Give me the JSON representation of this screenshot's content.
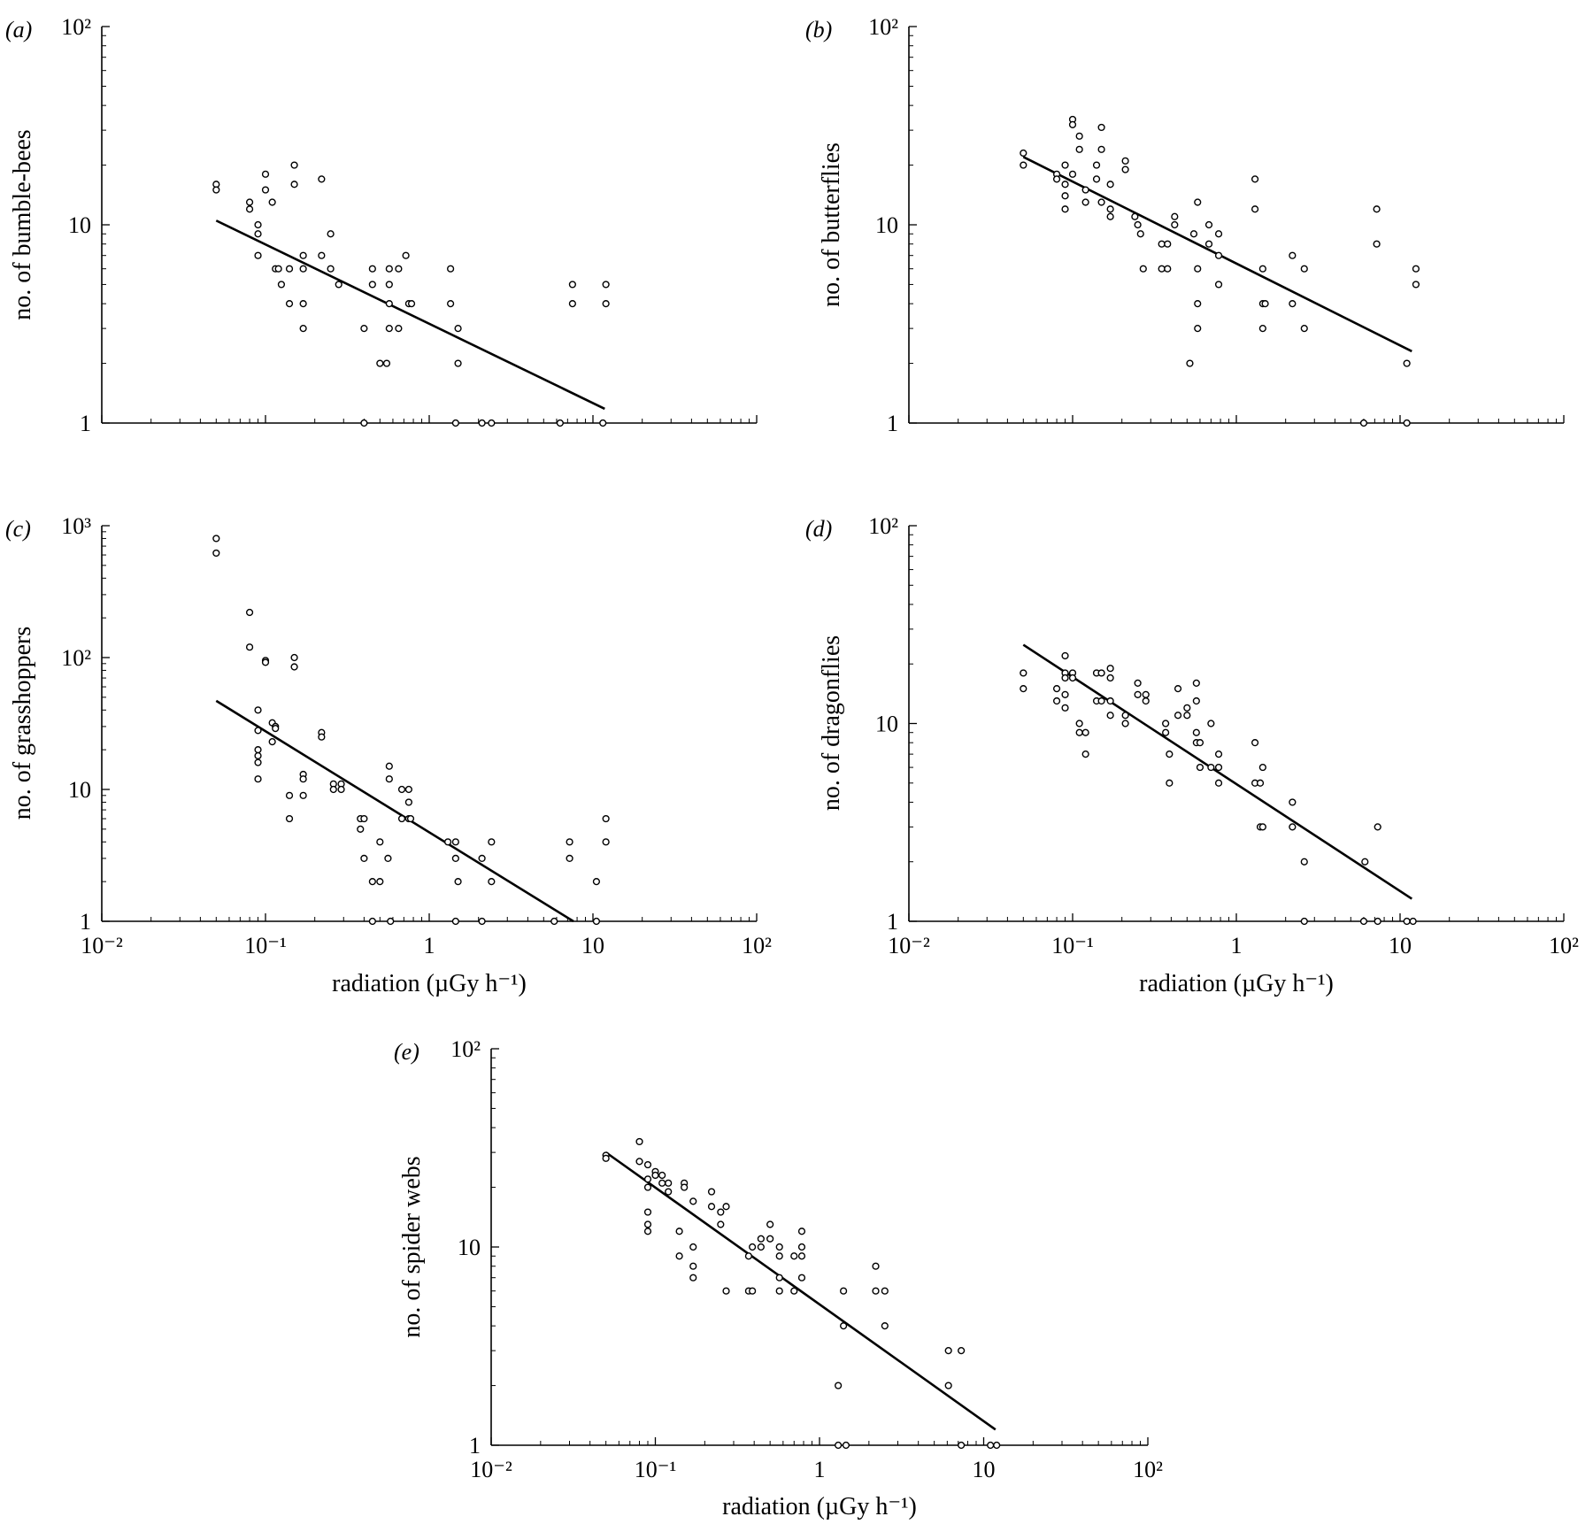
{
  "chart_data": [
    {
      "type": "scatter",
      "panel_label": "(a)",
      "ylabel": "no. of bumble-bees",
      "xlabel": "",
      "xscale": "log",
      "yscale": "log",
      "xlim": [
        0.01,
        100
      ],
      "ylim": [
        1,
        100
      ],
      "x_ticks": [],
      "y_ticks": [
        "1",
        "10",
        "10²"
      ],
      "points": [
        [
          0.05,
          16
        ],
        [
          0.05,
          15
        ],
        [
          0.08,
          13
        ],
        [
          0.08,
          12
        ],
        [
          0.09,
          10
        ],
        [
          0.09,
          9
        ],
        [
          0.09,
          7
        ],
        [
          0.1,
          18
        ],
        [
          0.1,
          15
        ],
        [
          0.11,
          13
        ],
        [
          0.115,
          6
        ],
        [
          0.12,
          6
        ],
        [
          0.125,
          5
        ],
        [
          0.14,
          6
        ],
        [
          0.14,
          4
        ],
        [
          0.15,
          20
        ],
        [
          0.15,
          16
        ],
        [
          0.17,
          7
        ],
        [
          0.17,
          6
        ],
        [
          0.17,
          4
        ],
        [
          0.17,
          3
        ],
        [
          0.22,
          17
        ],
        [
          0.22,
          7
        ],
        [
          0.25,
          9
        ],
        [
          0.25,
          6
        ],
        [
          0.28,
          5
        ],
        [
          0.4,
          3
        ],
        [
          0.45,
          6
        ],
        [
          0.45,
          5
        ],
        [
          0.5,
          2
        ],
        [
          0.55,
          2
        ],
        [
          0.57,
          6
        ],
        [
          0.57,
          5
        ],
        [
          0.57,
          4
        ],
        [
          0.57,
          3
        ],
        [
          0.65,
          6
        ],
        [
          0.65,
          3
        ],
        [
          0.72,
          7
        ],
        [
          0.75,
          4
        ],
        [
          0.78,
          4
        ],
        [
          1.35,
          6
        ],
        [
          1.35,
          4
        ],
        [
          1.5,
          3
        ],
        [
          1.5,
          2
        ],
        [
          7.5,
          5
        ],
        [
          7.5,
          4
        ],
        [
          12,
          5
        ],
        [
          12,
          4
        ],
        [
          0.4,
          1
        ],
        [
          1.45,
          1
        ],
        [
          2.1,
          1
        ],
        [
          2.4,
          1
        ],
        [
          6.3,
          1
        ],
        [
          11.5,
          1
        ]
      ],
      "fit": {
        "x": [
          0.05,
          11.8
        ],
        "y": [
          10.5,
          1.18
        ]
      }
    },
    {
      "type": "scatter",
      "panel_label": "(b)",
      "ylabel": "no. of butterflies",
      "xlabel": "",
      "xscale": "log",
      "yscale": "log",
      "xlim": [
        0.01,
        100
      ],
      "ylim": [
        1,
        100
      ],
      "x_ticks": [],
      "y_ticks": [
        "1",
        "10",
        "10²"
      ],
      "points": [
        [
          0.05,
          23
        ],
        [
          0.05,
          20
        ],
        [
          0.08,
          18
        ],
        [
          0.08,
          17
        ],
        [
          0.09,
          20
        ],
        [
          0.09,
          16
        ],
        [
          0.09,
          14
        ],
        [
          0.09,
          12
        ],
        [
          0.1,
          34
        ],
        [
          0.1,
          32
        ],
        [
          0.1,
          18
        ],
        [
          0.11,
          28
        ],
        [
          0.11,
          24
        ],
        [
          0.12,
          15
        ],
        [
          0.12,
          13
        ],
        [
          0.14,
          20
        ],
        [
          0.14,
          17
        ],
        [
          0.15,
          31
        ],
        [
          0.15,
          24
        ],
        [
          0.15,
          13
        ],
        [
          0.17,
          16
        ],
        [
          0.17,
          12
        ],
        [
          0.17,
          11
        ],
        [
          0.21,
          21
        ],
        [
          0.21,
          19
        ],
        [
          0.24,
          11
        ],
        [
          0.25,
          10
        ],
        [
          0.26,
          9
        ],
        [
          0.27,
          6
        ],
        [
          0.35,
          8
        ],
        [
          0.35,
          6
        ],
        [
          0.38,
          8
        ],
        [
          0.38,
          6
        ],
        [
          0.42,
          11
        ],
        [
          0.42,
          10
        ],
        [
          0.52,
          2
        ],
        [
          0.55,
          9
        ],
        [
          0.58,
          13
        ],
        [
          0.58,
          6
        ],
        [
          0.58,
          4
        ],
        [
          0.58,
          3
        ],
        [
          0.68,
          10
        ],
        [
          0.68,
          8
        ],
        [
          0.78,
          9
        ],
        [
          0.78,
          7
        ],
        [
          0.78,
          5
        ],
        [
          1.3,
          17
        ],
        [
          1.3,
          12
        ],
        [
          1.45,
          6
        ],
        [
          1.45,
          4
        ],
        [
          1.5,
          4
        ],
        [
          1.45,
          3
        ],
        [
          2.2,
          7
        ],
        [
          2.2,
          4
        ],
        [
          2.6,
          6
        ],
        [
          2.6,
          3
        ],
        [
          7.2,
          12
        ],
        [
          7.2,
          8
        ],
        [
          11,
          2
        ],
        [
          12.5,
          6
        ],
        [
          12.5,
          5
        ],
        [
          6,
          1
        ],
        [
          11,
          1
        ]
      ],
      "fit": {
        "x": [
          0.05,
          11.8
        ],
        "y": [
          22,
          2.3
        ]
      }
    },
    {
      "type": "scatter",
      "panel_label": "(c)",
      "ylabel": "no. of grasshoppers",
      "xlabel": "radiation (µGy h⁻¹)",
      "xscale": "log",
      "yscale": "log",
      "xlim": [
        0.01,
        100
      ],
      "ylim": [
        1,
        1000
      ],
      "x_ticks": [
        "10⁻²",
        "10⁻¹",
        "1",
        "10",
        "10²"
      ],
      "y_ticks": [
        "1",
        "10",
        "10²",
        "10³"
      ],
      "points": [
        [
          0.05,
          800
        ],
        [
          0.05,
          620
        ],
        [
          0.08,
          220
        ],
        [
          0.08,
          120
        ],
        [
          0.09,
          40
        ],
        [
          0.09,
          28
        ],
        [
          0.09,
          20
        ],
        [
          0.09,
          18
        ],
        [
          0.09,
          16
        ],
        [
          0.09,
          12
        ],
        [
          0.1,
          95
        ],
        [
          0.1,
          92
        ],
        [
          0.11,
          32
        ],
        [
          0.11,
          23
        ],
        [
          0.115,
          30
        ],
        [
          0.115,
          29
        ],
        [
          0.14,
          9
        ],
        [
          0.14,
          6
        ],
        [
          0.15,
          100
        ],
        [
          0.15,
          85
        ],
        [
          0.17,
          13
        ],
        [
          0.17,
          12
        ],
        [
          0.17,
          9
        ],
        [
          0.22,
          27
        ],
        [
          0.22,
          25
        ],
        [
          0.26,
          11
        ],
        [
          0.26,
          10
        ],
        [
          0.29,
          11
        ],
        [
          0.29,
          10
        ],
        [
          0.38,
          6
        ],
        [
          0.38,
          5
        ],
        [
          0.4,
          6
        ],
        [
          0.4,
          3
        ],
        [
          0.45,
          2
        ],
        [
          0.5,
          4
        ],
        [
          0.5,
          2
        ],
        [
          0.56,
          3
        ],
        [
          0.57,
          15
        ],
        [
          0.57,
          12
        ],
        [
          0.68,
          10
        ],
        [
          0.68,
          6
        ],
        [
          0.75,
          10
        ],
        [
          0.75,
          8
        ],
        [
          0.75,
          6
        ],
        [
          0.77,
          6
        ],
        [
          1.3,
          4
        ],
        [
          1.45,
          4
        ],
        [
          1.45,
          3
        ],
        [
          1.5,
          2
        ],
        [
          2.1,
          3
        ],
        [
          2.4,
          4
        ],
        [
          2.4,
          2
        ],
        [
          7.2,
          4
        ],
        [
          7.2,
          3
        ],
        [
          10.5,
          2
        ],
        [
          12,
          6
        ],
        [
          12,
          4
        ],
        [
          0.45,
          1
        ],
        [
          0.58,
          1
        ],
        [
          1.45,
          1
        ],
        [
          2.1,
          1
        ],
        [
          5.8,
          1
        ],
        [
          10.5,
          1
        ]
      ],
      "fit": {
        "x": [
          0.05,
          7.6
        ],
        "y": [
          47,
          1.0
        ]
      }
    },
    {
      "type": "scatter",
      "panel_label": "(d)",
      "ylabel": "no. of dragonflies",
      "xlabel": "radiation (µGy h⁻¹)",
      "xscale": "log",
      "yscale": "log",
      "xlim": [
        0.01,
        100
      ],
      "ylim": [
        1,
        100
      ],
      "x_ticks": [
        "10⁻²",
        "10⁻¹",
        "1",
        "10",
        "10²"
      ],
      "y_ticks": [
        "1",
        "10",
        "10²"
      ],
      "points": [
        [
          0.05,
          18
        ],
        [
          0.05,
          15
        ],
        [
          0.08,
          15
        ],
        [
          0.08,
          13
        ],
        [
          0.09,
          22
        ],
        [
          0.09,
          18
        ],
        [
          0.09,
          17
        ],
        [
          0.09,
          14
        ],
        [
          0.09,
          12
        ],
        [
          0.1,
          18
        ],
        [
          0.1,
          17
        ],
        [
          0.11,
          10
        ],
        [
          0.11,
          9
        ],
        [
          0.12,
          9
        ],
        [
          0.12,
          7
        ],
        [
          0.14,
          18
        ],
        [
          0.14,
          13
        ],
        [
          0.15,
          18
        ],
        [
          0.15,
          13
        ],
        [
          0.17,
          19
        ],
        [
          0.17,
          17
        ],
        [
          0.17,
          13
        ],
        [
          0.17,
          11
        ],
        [
          0.21,
          11
        ],
        [
          0.21,
          10
        ],
        [
          0.25,
          16
        ],
        [
          0.25,
          14
        ],
        [
          0.28,
          14
        ],
        [
          0.28,
          13
        ],
        [
          0.37,
          10
        ],
        [
          0.37,
          9
        ],
        [
          0.39,
          7
        ],
        [
          0.39,
          5
        ],
        [
          0.44,
          15
        ],
        [
          0.44,
          11
        ],
        [
          0.5,
          12
        ],
        [
          0.5,
          11
        ],
        [
          0.57,
          16
        ],
        [
          0.57,
          13
        ],
        [
          0.57,
          9
        ],
        [
          0.57,
          8
        ],
        [
          0.6,
          8
        ],
        [
          0.6,
          6
        ],
        [
          0.7,
          10
        ],
        [
          0.7,
          6
        ],
        [
          0.78,
          7
        ],
        [
          0.78,
          6
        ],
        [
          0.78,
          5
        ],
        [
          1.3,
          8
        ],
        [
          1.3,
          5
        ],
        [
          1.4,
          5
        ],
        [
          1.4,
          3
        ],
        [
          1.45,
          6
        ],
        [
          1.45,
          3
        ],
        [
          2.2,
          4
        ],
        [
          2.2,
          3
        ],
        [
          2.6,
          2
        ],
        [
          6.1,
          2
        ],
        [
          7.3,
          3
        ],
        [
          2.6,
          1
        ],
        [
          6,
          1
        ],
        [
          7.3,
          1
        ],
        [
          11,
          1
        ],
        [
          12,
          1
        ]
      ],
      "fit": {
        "x": [
          0.05,
          11.8
        ],
        "y": [
          25,
          1.3
        ]
      }
    },
    {
      "type": "scatter",
      "panel_label": "(e)",
      "ylabel": "no. of spider webs",
      "xlabel": "radiation (µGy h⁻¹)",
      "xscale": "log",
      "yscale": "log",
      "xlim": [
        0.01,
        100
      ],
      "ylim": [
        1,
        100
      ],
      "x_ticks": [
        "10⁻²",
        "10⁻¹",
        "1",
        "10",
        "10²"
      ],
      "y_ticks": [
        "1",
        "10",
        "10²"
      ],
      "points": [
        [
          0.05,
          29
        ],
        [
          0.05,
          28
        ],
        [
          0.08,
          34
        ],
        [
          0.08,
          27
        ],
        [
          0.09,
          26
        ],
        [
          0.09,
          22
        ],
        [
          0.09,
          20
        ],
        [
          0.09,
          15
        ],
        [
          0.09,
          13
        ],
        [
          0.09,
          12
        ],
        [
          0.1,
          24
        ],
        [
          0.1,
          23
        ],
        [
          0.11,
          23
        ],
        [
          0.11,
          21
        ],
        [
          0.12,
          21
        ],
        [
          0.12,
          19
        ],
        [
          0.14,
          12
        ],
        [
          0.14,
          9
        ],
        [
          0.15,
          21
        ],
        [
          0.15,
          20
        ],
        [
          0.17,
          17
        ],
        [
          0.17,
          10
        ],
        [
          0.17,
          8
        ],
        [
          0.17,
          7
        ],
        [
          0.22,
          19
        ],
        [
          0.22,
          16
        ],
        [
          0.25,
          15
        ],
        [
          0.25,
          13
        ],
        [
          0.27,
          16
        ],
        [
          0.27,
          6
        ],
        [
          0.37,
          9
        ],
        [
          0.37,
          6
        ],
        [
          0.39,
          10
        ],
        [
          0.39,
          6
        ],
        [
          0.44,
          10
        ],
        [
          0.44,
          11
        ],
        [
          0.5,
          13
        ],
        [
          0.5,
          11
        ],
        [
          0.57,
          10
        ],
        [
          0.57,
          9
        ],
        [
          0.57,
          7
        ],
        [
          0.57,
          6
        ],
        [
          0.7,
          9
        ],
        [
          0.7,
          6
        ],
        [
          0.78,
          12
        ],
        [
          0.78,
          10
        ],
        [
          0.78,
          9
        ],
        [
          0.78,
          7
        ],
        [
          1.3,
          2
        ],
        [
          1.4,
          6
        ],
        [
          1.4,
          4
        ],
        [
          2.2,
          8
        ],
        [
          2.2,
          6
        ],
        [
          2.5,
          6
        ],
        [
          2.5,
          4
        ],
        [
          6.1,
          3
        ],
        [
          6.1,
          2
        ],
        [
          7.3,
          3
        ],
        [
          1.3,
          1
        ],
        [
          1.45,
          1
        ],
        [
          7.3,
          1
        ],
        [
          11,
          1
        ],
        [
          12,
          1
        ]
      ],
      "fit": {
        "x": [
          0.05,
          11.8
        ],
        "y": [
          30,
          1.2
        ]
      }
    }
  ]
}
